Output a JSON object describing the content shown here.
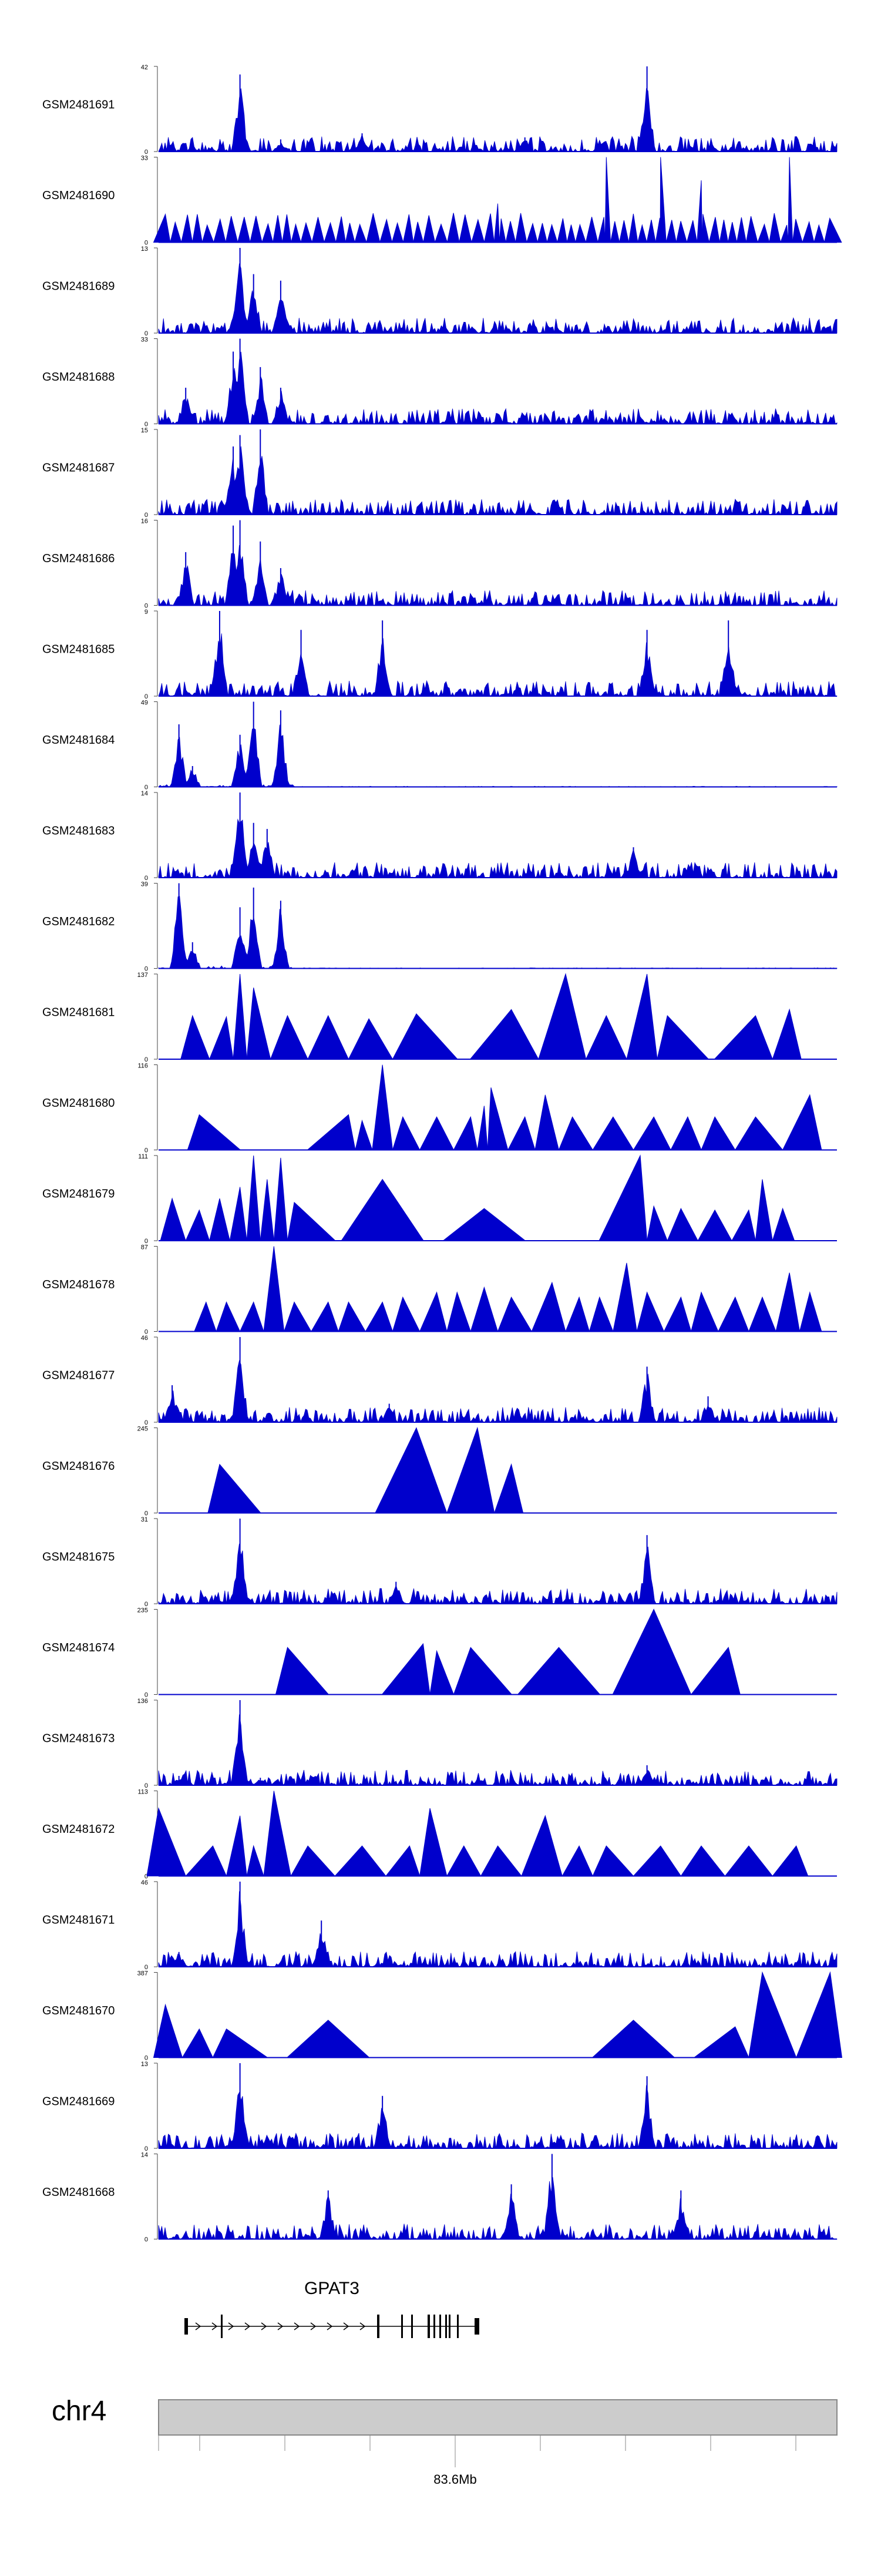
{
  "chart_data": {
    "type": "area",
    "title": "",
    "xlabel": "",
    "ylabel": "",
    "genomic_region": {
      "chromosome": "chr4",
      "axis_label": "83.6Mb"
    },
    "gene": {
      "name": "GPAT3",
      "strand": "+"
    },
    "tracks": [
      {
        "name": "GSM2481691",
        "ymax": 42,
        "ymin": 0,
        "style": "dense",
        "peaks": [
          [
            0.12,
            38
          ],
          [
            0.72,
            42
          ],
          [
            0.3,
            9
          ],
          [
            0.54,
            7
          ],
          [
            0.18,
            6
          ]
        ]
      },
      {
        "name": "GSM2481690",
        "ymax": 33,
        "ymin": 0,
        "style": "sparse",
        "peaks": [
          [
            0.66,
            33
          ],
          [
            0.74,
            33
          ],
          [
            0.93,
            33
          ],
          [
            0.8,
            24
          ],
          [
            0.5,
            15
          ]
        ]
      },
      {
        "name": "GSM2481689",
        "ymax": 13,
        "ymin": 0,
        "style": "dense",
        "peaks": [
          [
            0.12,
            13
          ],
          [
            0.14,
            9
          ],
          [
            0.18,
            8
          ]
        ]
      },
      {
        "name": "GSM2481688",
        "ymax": 33,
        "ymin": 0,
        "style": "dense",
        "peaks": [
          [
            0.12,
            33
          ],
          [
            0.11,
            28
          ],
          [
            0.15,
            22
          ],
          [
            0.04,
            14
          ],
          [
            0.18,
            14
          ]
        ]
      },
      {
        "name": "GSM2481687",
        "ymax": 15,
        "ymin": 0,
        "style": "dense",
        "peaks": [
          [
            0.12,
            14
          ],
          [
            0.15,
            15
          ],
          [
            0.11,
            12
          ]
        ]
      },
      {
        "name": "GSM2481686",
        "ymax": 16,
        "ymin": 0,
        "style": "dense",
        "peaks": [
          [
            0.12,
            16
          ],
          [
            0.11,
            15
          ],
          [
            0.15,
            12
          ],
          [
            0.04,
            10
          ],
          [
            0.18,
            7
          ]
        ]
      },
      {
        "name": "GSM2481685",
        "ymax": 9,
        "ymin": 0,
        "style": "dense",
        "peaks": [
          [
            0.09,
            9
          ],
          [
            0.33,
            8
          ],
          [
            0.84,
            8
          ],
          [
            0.21,
            7
          ],
          [
            0.72,
            7
          ]
        ]
      },
      {
        "name": "GSM2481684",
        "ymax": 49,
        "ymin": 0,
        "style": "cluster",
        "peaks": [
          [
            0.03,
            36
          ],
          [
            0.05,
            12
          ],
          [
            0.12,
            30
          ],
          [
            0.14,
            49
          ],
          [
            0.18,
            44
          ]
        ]
      },
      {
        "name": "GSM2481683",
        "ymax": 14,
        "ymin": 0,
        "style": "dense",
        "peaks": [
          [
            0.12,
            14
          ],
          [
            0.14,
            9
          ],
          [
            0.16,
            8
          ],
          [
            0.7,
            5
          ]
        ]
      },
      {
        "name": "GSM2481682",
        "ymax": 39,
        "ymin": 0,
        "style": "cluster",
        "peaks": [
          [
            0.03,
            39
          ],
          [
            0.05,
            12
          ],
          [
            0.12,
            28
          ],
          [
            0.14,
            37
          ],
          [
            0.18,
            31
          ]
        ]
      },
      {
        "name": "GSM2481681",
        "ymax": 137,
        "ymin": 0,
        "style": "triangles",
        "peaks": [
          [
            0.05,
            70
          ],
          [
            0.1,
            68
          ],
          [
            0.12,
            137
          ],
          [
            0.14,
            115
          ],
          [
            0.19,
            70
          ],
          [
            0.25,
            70
          ],
          [
            0.31,
            65
          ],
          [
            0.38,
            73
          ],
          [
            0.52,
            80
          ],
          [
            0.6,
            137
          ],
          [
            0.66,
            70
          ],
          [
            0.72,
            137
          ],
          [
            0.75,
            70
          ],
          [
            0.88,
            70
          ],
          [
            0.93,
            80
          ]
        ]
      },
      {
        "name": "GSM2481680",
        "ymax": 116,
        "ymin": 0,
        "style": "triangles",
        "peaks": [
          [
            0.06,
            48
          ],
          [
            0.28,
            48
          ],
          [
            0.3,
            40
          ],
          [
            0.33,
            116
          ],
          [
            0.36,
            45
          ],
          [
            0.41,
            45
          ],
          [
            0.46,
            45
          ],
          [
            0.48,
            60
          ],
          [
            0.49,
            85
          ],
          [
            0.54,
            45
          ],
          [
            0.57,
            75
          ],
          [
            0.61,
            45
          ],
          [
            0.67,
            45
          ],
          [
            0.73,
            45
          ],
          [
            0.78,
            45
          ],
          [
            0.82,
            45
          ],
          [
            0.88,
            45
          ],
          [
            0.96,
            75
          ]
        ]
      },
      {
        "name": "GSM2481679",
        "ymax": 111,
        "ymin": 0,
        "style": "triangles",
        "peaks": [
          [
            0.02,
            55
          ],
          [
            0.06,
            40
          ],
          [
            0.09,
            55
          ],
          [
            0.12,
            70
          ],
          [
            0.14,
            111
          ],
          [
            0.16,
            80
          ],
          [
            0.18,
            108
          ],
          [
            0.2,
            50
          ],
          [
            0.33,
            80
          ],
          [
            0.48,
            42
          ],
          [
            0.71,
            111
          ],
          [
            0.73,
            45
          ],
          [
            0.77,
            42
          ],
          [
            0.82,
            40
          ],
          [
            0.87,
            40
          ],
          [
            0.89,
            80
          ],
          [
            0.92,
            42
          ]
        ]
      },
      {
        "name": "GSM2481678",
        "ymax": 87,
        "ymin": 0,
        "style": "triangles",
        "peaks": [
          [
            0.07,
            30
          ],
          [
            0.1,
            30
          ],
          [
            0.14,
            30
          ],
          [
            0.17,
            87
          ],
          [
            0.2,
            30
          ],
          [
            0.25,
            30
          ],
          [
            0.28,
            30
          ],
          [
            0.33,
            30
          ],
          [
            0.36,
            35
          ],
          [
            0.41,
            40
          ],
          [
            0.44,
            40
          ],
          [
            0.48,
            45
          ],
          [
            0.52,
            35
          ],
          [
            0.58,
            50
          ],
          [
            0.62,
            35
          ],
          [
            0.65,
            35
          ],
          [
            0.69,
            70
          ],
          [
            0.72,
            40
          ],
          [
            0.77,
            35
          ],
          [
            0.8,
            40
          ],
          [
            0.85,
            35
          ],
          [
            0.89,
            35
          ],
          [
            0.93,
            60
          ],
          [
            0.96,
            40
          ]
        ]
      },
      {
        "name": "GSM2481677",
        "ymax": 46,
        "ymin": 0,
        "style": "dense",
        "peaks": [
          [
            0.12,
            46
          ],
          [
            0.02,
            20
          ],
          [
            0.34,
            10
          ],
          [
            0.72,
            30
          ],
          [
            0.81,
            14
          ]
        ]
      },
      {
        "name": "GSM2481676",
        "ymax": 245,
        "ymin": 0,
        "style": "triangles",
        "peaks": [
          [
            0.09,
            140
          ],
          [
            0.38,
            245
          ],
          [
            0.47,
            245
          ],
          [
            0.52,
            140
          ]
        ]
      },
      {
        "name": "GSM2481675",
        "ymax": 31,
        "ymin": 0,
        "style": "dense",
        "peaks": [
          [
            0.12,
            31
          ],
          [
            0.72,
            25
          ],
          [
            0.35,
            8
          ]
        ]
      },
      {
        "name": "GSM2481674",
        "ymax": 235,
        "ymin": 0,
        "style": "triangles",
        "peaks": [
          [
            0.19,
            130
          ],
          [
            0.39,
            140
          ],
          [
            0.41,
            120
          ],
          [
            0.46,
            130
          ],
          [
            0.59,
            130
          ],
          [
            0.73,
            235
          ],
          [
            0.84,
            130
          ]
        ]
      },
      {
        "name": "GSM2481673",
        "ymax": 136,
        "ymin": 0,
        "style": "dense",
        "peaks": [
          [
            0.12,
            136
          ],
          [
            0.72,
            32
          ],
          [
            0.03,
            15
          ],
          [
            0.15,
            12
          ]
        ]
      },
      {
        "name": "GSM2481672",
        "ymax": 113,
        "ymin": 0,
        "style": "triangles",
        "peaks": [
          [
            0.0,
            90
          ],
          [
            0.08,
            40
          ],
          [
            0.12,
            80
          ],
          [
            0.14,
            40
          ],
          [
            0.17,
            113
          ],
          [
            0.22,
            40
          ],
          [
            0.3,
            40
          ],
          [
            0.37,
            40
          ],
          [
            0.4,
            90
          ],
          [
            0.45,
            40
          ],
          [
            0.5,
            40
          ],
          [
            0.57,
            80
          ],
          [
            0.62,
            40
          ],
          [
            0.66,
            40
          ],
          [
            0.74,
            40
          ],
          [
            0.8,
            40
          ],
          [
            0.87,
            40
          ],
          [
            0.94,
            40
          ]
        ]
      },
      {
        "name": "GSM2481671",
        "ymax": 46,
        "ymin": 0,
        "style": "dense",
        "peaks": [
          [
            0.12,
            46
          ],
          [
            0.24,
            25
          ],
          [
            0.03,
            8
          ]
        ]
      },
      {
        "name": "GSM2481670",
        "ymax": 387,
        "ymin": 0,
        "style": "triangles",
        "peaks": [
          [
            0.01,
            240
          ],
          [
            0.06,
            130
          ],
          [
            0.1,
            130
          ],
          [
            0.25,
            170
          ],
          [
            0.7,
            170
          ],
          [
            0.85,
            140
          ],
          [
            0.89,
            387
          ],
          [
            0.99,
            387
          ]
        ]
      },
      {
        "name": "GSM2481669",
        "ymax": 13,
        "ymin": 0,
        "style": "dense",
        "peaks": [
          [
            0.12,
            13
          ],
          [
            0.72,
            11
          ],
          [
            0.33,
            8
          ]
        ]
      },
      {
        "name": "GSM2481668",
        "ymax": 14,
        "ymin": 0,
        "style": "dense",
        "peaks": [
          [
            0.58,
            14
          ],
          [
            0.52,
            9
          ],
          [
            0.77,
            8
          ],
          [
            0.25,
            8
          ]
        ]
      }
    ]
  },
  "colors": {
    "signal": "#0000cc",
    "axis": "#444444",
    "label": "#000000",
    "gene": "#000000",
    "chrom_bar_fill": "#cccccc",
    "chrom_bar_stroke": "#888888"
  }
}
